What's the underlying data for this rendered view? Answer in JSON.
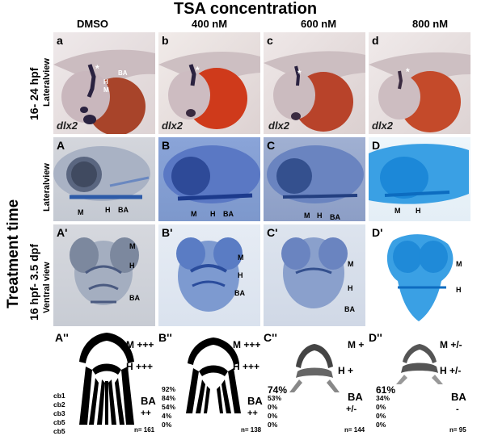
{
  "title": "TSA concentration",
  "columns": [
    "DMSO",
    "400 nM",
    "600 nM",
    "800 nM"
  ],
  "side": {
    "treatment_time": "Treatment time",
    "row1_time": "16- 24 hpf",
    "row2_time": "16 hpf- 3.5 dpf"
  },
  "row_views": {
    "lateral1": "Lateralview",
    "lateral2": "Lateralview",
    "ventral": "Ventral view"
  },
  "gene": "dlx2",
  "panel_labels": {
    "row1": [
      "a",
      "b",
      "c",
      "d"
    ],
    "row2": [
      "A",
      "B",
      "C",
      "D"
    ],
    "row3": [
      "A'",
      "B'",
      "C'",
      "D'"
    ],
    "row4": [
      "A''",
      "B''",
      "C''",
      "D''"
    ]
  },
  "markers": {
    "ba": "BA",
    "h": "H",
    "m": "M",
    "star": "*"
  },
  "cartilage": [
    {
      "m": "M +++",
      "h": "H +++",
      "ba": "BA",
      "ba_score": "++",
      "pct": [
        "",
        "",
        "",
        "",
        ""
      ],
      "n": "n= 161"
    },
    {
      "m": "M +++",
      "h": "H +++",
      "ba": "BA",
      "ba_score": "++",
      "pct": [
        "92%",
        "84%",
        "54%",
        "4%",
        "0%"
      ],
      "n": "n= 138"
    },
    {
      "m": "M +",
      "h": "H +",
      "ba": "BA",
      "ba_score": "+/-",
      "pct_big": "74%",
      "pct": [
        "",
        "53%",
        "0%",
        "0%",
        "0%"
      ],
      "n": "n= 144"
    },
    {
      "m": "M +/-",
      "h": "H +/-",
      "ba": "BA",
      "ba_score": "-",
      "pct_big": "61%",
      "pct": [
        "",
        "34%",
        "0%",
        "0%",
        "0%"
      ],
      "n": "n= 95"
    }
  ],
  "cb_labels": [
    "cb1",
    "cb2",
    "cb3",
    "cb5",
    "cb5"
  ]
}
